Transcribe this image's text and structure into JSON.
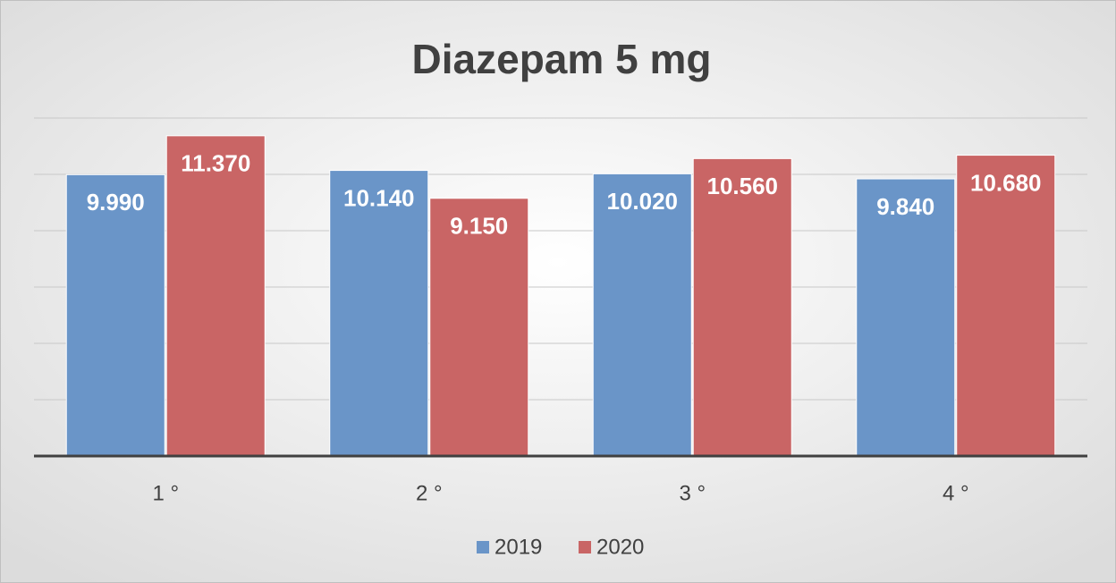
{
  "chart_data": {
    "type": "bar",
    "title": "Diazepam 5 mg",
    "categories": [
      "1 °",
      "2 °",
      "3 °",
      "4 °"
    ],
    "series": [
      {
        "name": "2019",
        "color": "#6a95c8",
        "values": [
          9.99,
          10.14,
          10.02,
          9.84
        ],
        "value_labels": [
          "9.990",
          "10.140",
          "10.020",
          "9.840"
        ]
      },
      {
        "name": "2020",
        "color": "#c96565",
        "values": [
          11.37,
          9.15,
          10.56,
          10.68
        ],
        "value_labels": [
          "11.370",
          "9.150",
          "10.560",
          "10.680"
        ]
      }
    ],
    "ylim": [
      0,
      12
    ],
    "yticks": [
      0,
      2,
      4,
      6,
      8,
      10,
      12
    ],
    "grid": true,
    "legend": "bottom"
  }
}
